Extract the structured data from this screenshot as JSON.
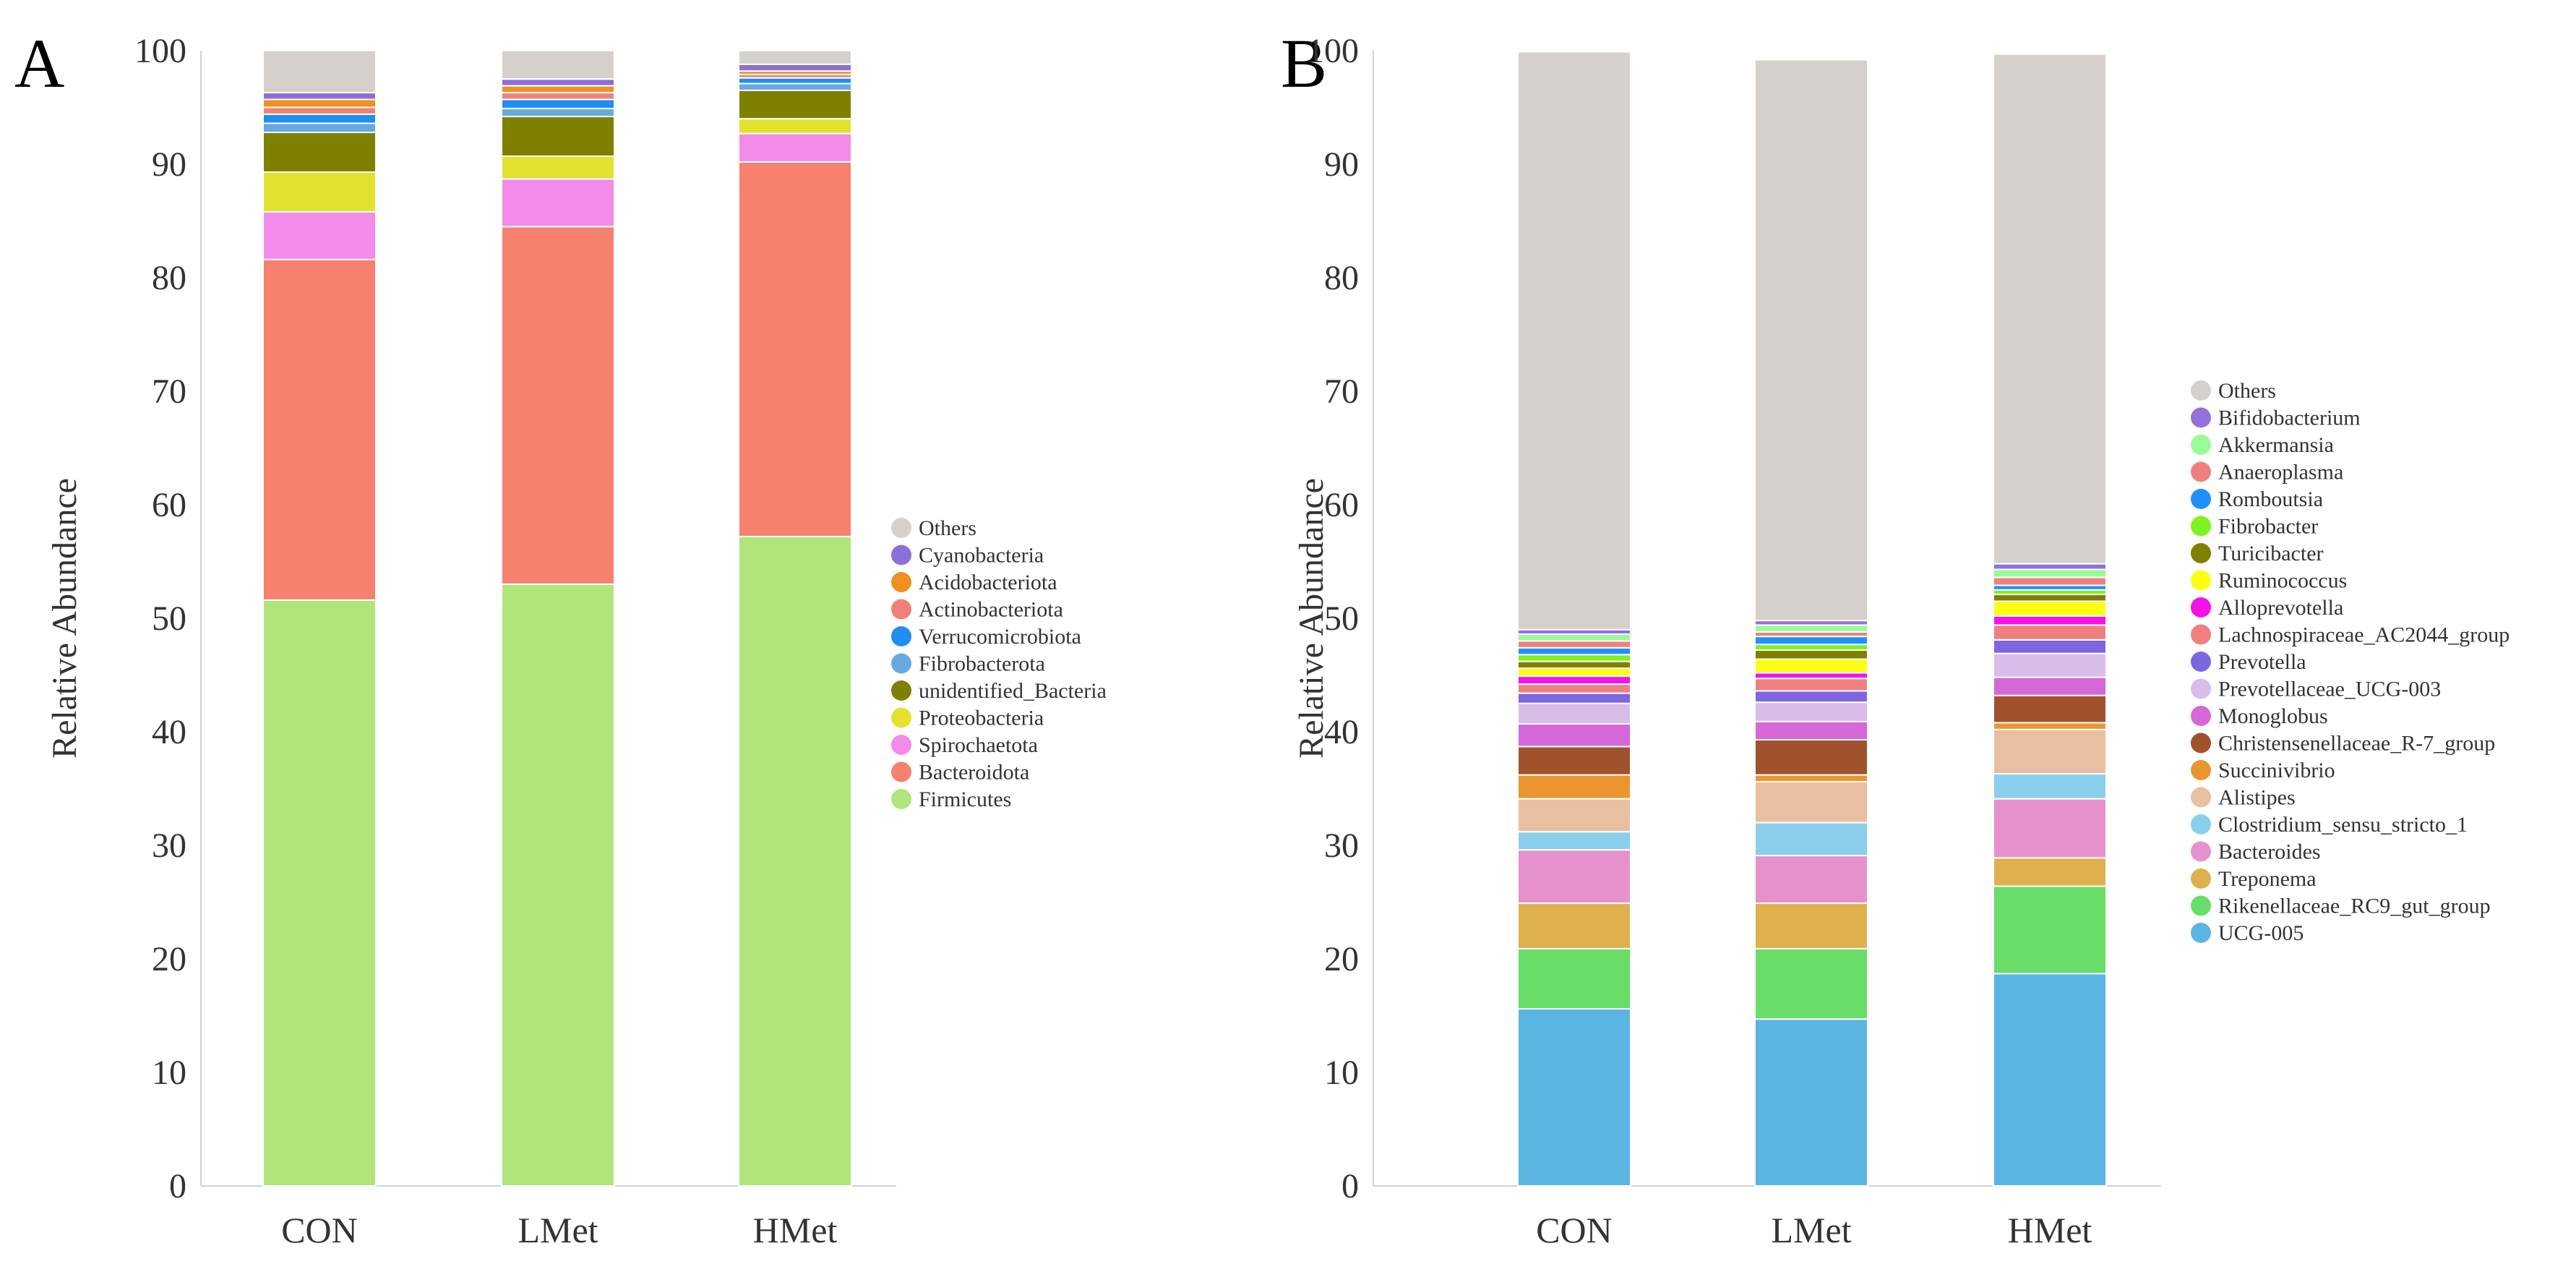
{
  "panels": {
    "a": {
      "label": "A"
    },
    "b": {
      "label": "B"
    }
  },
  "chart_data": [
    {
      "type": "bar",
      "stacked": true,
      "panel_label": "A",
      "title": "",
      "xlabel": "",
      "ylabel": "Relative Abundance",
      "ylim": [
        0,
        100
      ],
      "yticks": [
        0,
        10,
        20,
        30,
        40,
        50,
        60,
        70,
        80,
        90,
        100
      ],
      "grid": false,
      "legend_position": "right",
      "categories": [
        "CON",
        "LMet",
        "HMet"
      ],
      "series": [
        {
          "name": "Firmicutes",
          "color": "#b0e57c",
          "values": [
            51.6,
            53.0,
            57.2
          ]
        },
        {
          "name": "Bacteroidota",
          "color": "#f6816f",
          "values": [
            30.0,
            31.5,
            33.0
          ]
        },
        {
          "name": "Spirochaetota",
          "color": "#f28be9",
          "values": [
            4.2,
            4.2,
            2.5
          ]
        },
        {
          "name": "Proteobacteria",
          "color": "#e2e22e",
          "values": [
            3.5,
            2.0,
            1.3
          ]
        },
        {
          "name": "unidentified_Bacteria",
          "color": "#7f7f00",
          "values": [
            3.5,
            3.5,
            2.5
          ]
        },
        {
          "name": "Fibrobacterota",
          "color": "#66aadf",
          "values": [
            0.8,
            0.7,
            0.6
          ]
        },
        {
          "name": "Verrucomicrobiota",
          "color": "#1f8ef1",
          "values": [
            0.8,
            0.8,
            0.5
          ]
        },
        {
          "name": "Actinobacteriota",
          "color": "#f0807a",
          "values": [
            0.6,
            0.6,
            0.3
          ]
        },
        {
          "name": "Acidobacteriota",
          "color": "#f0901e",
          "values": [
            0.7,
            0.6,
            0.3
          ]
        },
        {
          "name": "Cyanobacteria",
          "color": "#8d6fd8",
          "values": [
            0.6,
            0.6,
            0.6
          ]
        },
        {
          "name": "Others",
          "color": "#d5d0cb",
          "values": [
            3.7,
            2.5,
            1.2
          ]
        }
      ]
    },
    {
      "type": "bar",
      "stacked": true,
      "panel_label": "B",
      "title": "",
      "xlabel": "",
      "ylabel": "Relative Abundance",
      "ylim": [
        0,
        100
      ],
      "yticks": [
        0,
        10,
        20,
        30,
        40,
        50,
        60,
        70,
        80,
        90,
        100
      ],
      "grid": false,
      "legend_position": "right",
      "categories": [
        "CON",
        "LMet",
        "HMet"
      ],
      "series": [
        {
          "name": "UCG-005",
          "color": "#5bb5e2",
          "values": [
            15.6,
            14.7,
            18.7
          ]
        },
        {
          "name": "Rikenellaceae_RC9_gut_group",
          "color": "#68dd68",
          "values": [
            5.3,
            6.2,
            7.7
          ]
        },
        {
          "name": "Treponema",
          "color": "#dfb04e",
          "values": [
            4.0,
            4.0,
            2.5
          ]
        },
        {
          "name": "Bacteroides",
          "color": "#e591cc",
          "values": [
            4.7,
            4.2,
            5.2
          ]
        },
        {
          "name": "Clostridium_sensu_stricto_1",
          "color": "#89cfec",
          "values": [
            1.6,
            2.9,
            2.2
          ]
        },
        {
          "name": "Alistipes",
          "color": "#e9bfa1",
          "values": [
            2.9,
            3.6,
            3.9
          ]
        },
        {
          "name": "Succinivibrio",
          "color": "#eb9531",
          "values": [
            2.1,
            0.6,
            0.6
          ]
        },
        {
          "name": "Christensenellaceae_R-7_group",
          "color": "#a0522d",
          "values": [
            2.5,
            3.1,
            2.4
          ]
        },
        {
          "name": "Monoglobus",
          "color": "#d667d6",
          "values": [
            2.0,
            1.6,
            1.6
          ]
        },
        {
          "name": "Prevotellaceae_UCG-003",
          "color": "#d8bde8",
          "values": [
            1.8,
            1.7,
            2.1
          ]
        },
        {
          "name": "Prevotella",
          "color": "#7d66e0",
          "values": [
            0.9,
            1.0,
            1.2
          ]
        },
        {
          "name": "Lachnospiraceae_AC2044_group",
          "color": "#f08080",
          "values": [
            0.8,
            1.1,
            1.3
          ]
        },
        {
          "name": "Alloprevotella",
          "color": "#f512e6",
          "values": [
            0.7,
            0.5,
            0.8
          ]
        },
        {
          "name": "Ruminococcus",
          "color": "#fdfd14",
          "values": [
            0.7,
            1.2,
            1.3
          ]
        },
        {
          "name": "Turicibacter",
          "color": "#808000",
          "values": [
            0.6,
            0.8,
            0.6
          ]
        },
        {
          "name": "Fibrobacter",
          "color": "#7ff21f",
          "values": [
            0.6,
            0.5,
            0.4
          ]
        },
        {
          "name": "Romboutsia",
          "color": "#1e90ff",
          "values": [
            0.6,
            0.7,
            0.4
          ]
        },
        {
          "name": "Anaeroplasma",
          "color": "#f08080",
          "values": [
            0.6,
            0.4,
            0.7
          ]
        },
        {
          "name": "Akkermansia",
          "color": "#98fb98",
          "values": [
            0.6,
            0.6,
            0.7
          ]
        },
        {
          "name": "Bifidobacterium",
          "color": "#9370db",
          "values": [
            0.4,
            0.4,
            0.5
          ]
        },
        {
          "name": "Others",
          "color": "#d5d0cb",
          "values": [
            50.9,
            49.4,
            44.9
          ]
        }
      ]
    }
  ]
}
